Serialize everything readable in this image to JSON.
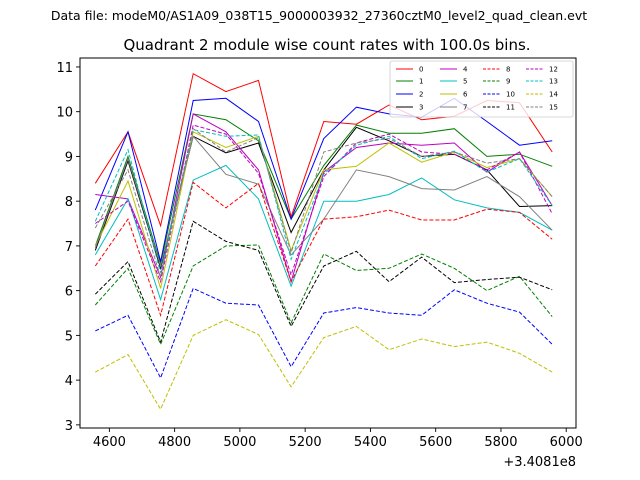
{
  "header": {
    "suptitle": "Data file: modeM0/AS1A09_038T15_9000003932_27360cztM0_level2_quad_clean.evt"
  },
  "chart_data": {
    "type": "line",
    "title": "Quadrant 2 module wise count rates with 100.0s bins.",
    "xlabel": "",
    "ylabel": "",
    "offset_label": "+3.4081e8",
    "xlim": [
      4510,
      6030
    ],
    "ylim": [
      2.93,
      11.2
    ],
    "xticks": [
      4600,
      4800,
      5000,
      5200,
      5400,
      5600,
      5800,
      6000
    ],
    "yticks": [
      3,
      4,
      5,
      6,
      7,
      8,
      9,
      10,
      11
    ],
    "grid": false,
    "legend_position": "top-right",
    "x": [
      4557,
      4657,
      4757,
      4857,
      4957,
      5057,
      5157,
      5257,
      5357,
      5457,
      5557,
      5657,
      5757,
      5857,
      5957
    ],
    "series": [
      {
        "name": "0",
        "color": "#ff0000",
        "dash": "solid",
        "values": [
          8.4,
          9.55,
          7.45,
          10.85,
          10.45,
          10.7,
          7.65,
          9.78,
          9.72,
          10.15,
          9.82,
          9.9,
          10.25,
          10.2,
          9.1
        ]
      },
      {
        "name": "1",
        "color": "#008000",
        "dash": "solid",
        "values": [
          7.0,
          9.0,
          6.6,
          9.95,
          9.82,
          9.35,
          7.6,
          8.8,
          9.7,
          9.52,
          9.52,
          9.62,
          9.0,
          9.05,
          8.78
        ]
      },
      {
        "name": "2",
        "color": "#0000ff",
        "dash": "solid",
        "values": [
          7.8,
          9.55,
          6.65,
          10.25,
          10.3,
          9.78,
          7.6,
          9.4,
          10.1,
          9.95,
          9.88,
          10.3,
          9.78,
          9.25,
          9.35
        ]
      },
      {
        "name": "3",
        "color": "#000000",
        "dash": "solid",
        "values": [
          6.9,
          8.9,
          6.5,
          9.45,
          9.08,
          9.3,
          7.3,
          8.7,
          9.65,
          9.35,
          9.0,
          9.05,
          8.7,
          7.88,
          7.9
        ]
      },
      {
        "name": "4",
        "color": "#bf00bf",
        "dash": "solid",
        "values": [
          8.15,
          8.05,
          6.3,
          9.95,
          9.55,
          8.7,
          6.2,
          8.65,
          9.2,
          9.3,
          9.25,
          9.3,
          8.65,
          9.1,
          7.9
        ]
      },
      {
        "name": "5",
        "color": "#00bfbf",
        "dash": "solid",
        "values": [
          6.8,
          8.05,
          5.8,
          8.47,
          8.8,
          8.05,
          6.1,
          8.0,
          8.0,
          8.15,
          8.52,
          8.03,
          7.85,
          7.75,
          7.35
        ]
      },
      {
        "name": "6",
        "color": "#bfbf00",
        "dash": "solid",
        "values": [
          7.0,
          8.45,
          6.05,
          9.55,
          9.2,
          9.45,
          6.9,
          8.7,
          8.78,
          9.3,
          8.87,
          9.1,
          8.75,
          8.95,
          8.1
        ]
      },
      {
        "name": "7",
        "color": "#808080",
        "dash": "solid",
        "values": [
          6.95,
          8.95,
          6.55,
          9.45,
          8.6,
          8.38,
          6.8,
          7.6,
          8.7,
          8.55,
          8.28,
          8.25,
          8.55,
          8.1,
          7.35
        ]
      },
      {
        "name": "8",
        "color": "#ff0000",
        "dash": "dashed",
        "values": [
          6.55,
          7.6,
          5.45,
          8.42,
          7.85,
          8.4,
          6.2,
          7.6,
          7.65,
          7.8,
          7.58,
          7.58,
          7.82,
          7.75,
          7.15
        ]
      },
      {
        "name": "9",
        "color": "#008000",
        "dash": "dashed",
        "values": [
          5.68,
          6.5,
          4.8,
          6.55,
          7.0,
          7.02,
          5.28,
          6.82,
          6.45,
          6.5,
          6.82,
          6.5,
          6.0,
          6.32,
          5.42
        ]
      },
      {
        "name": "10",
        "color": "#0000ff",
        "dash": "dashed",
        "values": [
          5.1,
          5.45,
          4.05,
          6.05,
          5.72,
          5.68,
          4.3,
          5.5,
          5.62,
          5.5,
          5.45,
          6.02,
          5.72,
          5.52,
          4.8
        ]
      },
      {
        "name": "11",
        "color": "#000000",
        "dash": "dashed",
        "values": [
          5.92,
          6.65,
          4.85,
          7.55,
          7.1,
          6.9,
          5.2,
          6.55,
          6.88,
          6.2,
          6.75,
          6.18,
          6.25,
          6.3,
          6.02
        ]
      },
      {
        "name": "12",
        "color": "#bf00bf",
        "dash": "dashed",
        "values": [
          7.5,
          8.0,
          6.2,
          9.7,
          9.5,
          8.62,
          6.35,
          8.55,
          9.3,
          9.5,
          9.1,
          9.05,
          8.7,
          9.1,
          7.72
        ]
      },
      {
        "name": "13",
        "color": "#00bfbf",
        "dash": "dashed",
        "values": [
          7.55,
          9.15,
          6.4,
          9.6,
          9.45,
          9.48,
          6.7,
          8.6,
          9.25,
          9.45,
          8.95,
          9.12,
          8.65,
          8.95,
          7.9
        ]
      },
      {
        "name": "14",
        "color": "#bfbf00",
        "dash": "dashed",
        "values": [
          4.18,
          4.57,
          3.35,
          5.0,
          5.35,
          5.02,
          3.85,
          4.95,
          5.2,
          4.68,
          4.92,
          4.75,
          4.85,
          4.6,
          4.18
        ]
      },
      {
        "name": "15",
        "color": "#808080",
        "dash": "dashed",
        "values": [
          7.4,
          8.7,
          6.3,
          9.62,
          9.1,
          9.42,
          6.85,
          9.1,
          9.3,
          9.4,
          9.0,
          9.1,
          8.85,
          8.95,
          8.1
        ]
      }
    ]
  }
}
